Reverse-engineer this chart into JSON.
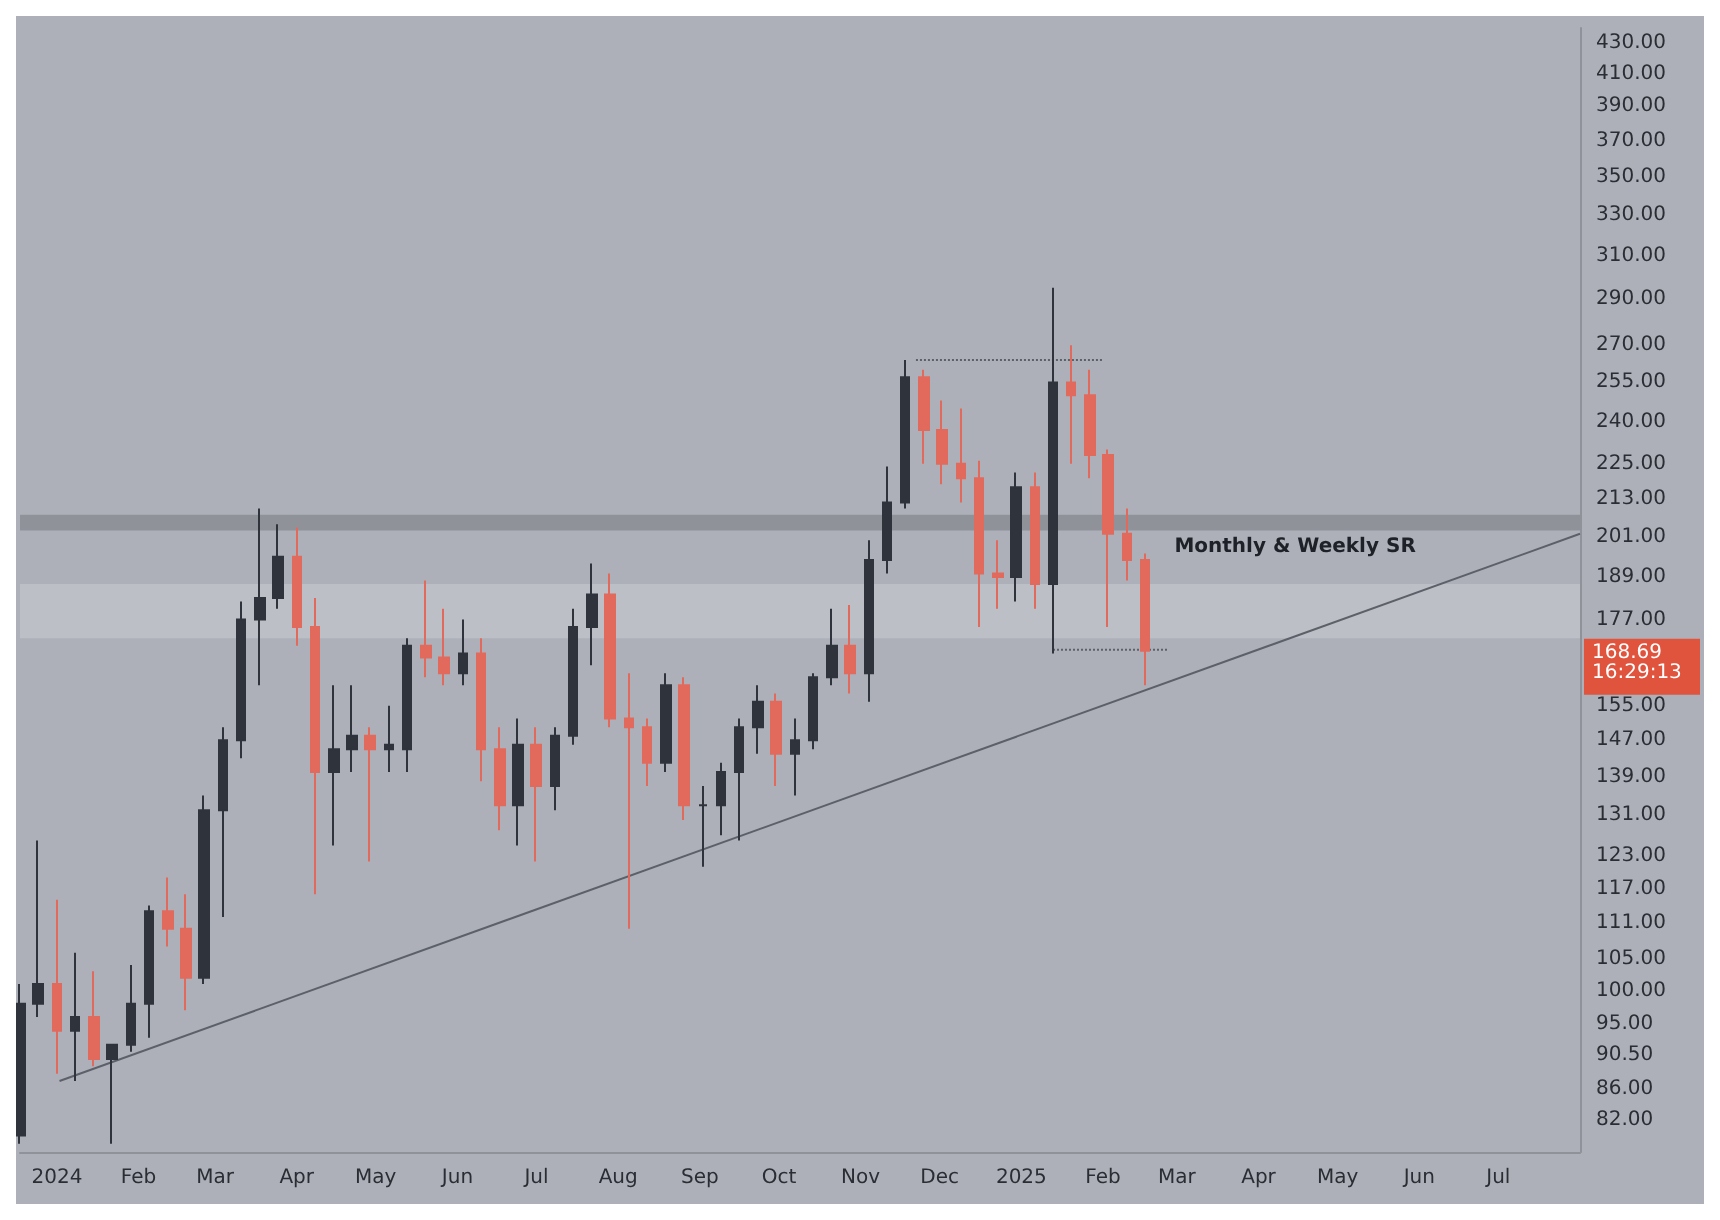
{
  "chart_data": {
    "type": "candlestick",
    "log": "y",
    "grid": false,
    "xlim": [
      "2023-12-18",
      "2025-08-01"
    ],
    "ylim": [
      78,
      440
    ],
    "xticks": [
      {
        "value": "2024-01-01",
        "label": "2024"
      },
      {
        "value": "2024-02-01",
        "label": "Feb"
      },
      {
        "value": "2024-03-01",
        "label": "Mar"
      },
      {
        "value": "2024-04-01",
        "label": "Apr"
      },
      {
        "value": "2024-05-01",
        "label": "May"
      },
      {
        "value": "2024-06-01",
        "label": "Jun"
      },
      {
        "value": "2024-07-01",
        "label": "Jul"
      },
      {
        "value": "2024-08-01",
        "label": "Aug"
      },
      {
        "value": "2024-09-01",
        "label": "Sep"
      },
      {
        "value": "2024-10-01",
        "label": "Oct"
      },
      {
        "value": "2024-11-01",
        "label": "Nov"
      },
      {
        "value": "2024-12-01",
        "label": "Dec"
      },
      {
        "value": "2025-01-01",
        "label": "2025"
      },
      {
        "value": "2025-02-01",
        "label": "Feb"
      },
      {
        "value": "2025-03-01",
        "label": "Mar"
      },
      {
        "value": "2025-04-01",
        "label": "Apr"
      },
      {
        "value": "2025-05-01",
        "label": "May"
      },
      {
        "value": "2025-06-01",
        "label": "Jun"
      },
      {
        "value": "2025-07-01",
        "label": "Jul"
      }
    ],
    "yticks": [
      {
        "value": 82,
        "label": "82.00"
      },
      {
        "value": 86,
        "label": "86.00"
      },
      {
        "value": 90.5,
        "label": "90.50"
      },
      {
        "value": 95,
        "label": "95.00"
      },
      {
        "value": 100,
        "label": "100.00"
      },
      {
        "value": 105,
        "label": "105.00"
      },
      {
        "value": 111,
        "label": "111.00"
      },
      {
        "value": 117,
        "label": "117.00"
      },
      {
        "value": 123,
        "label": "123.00"
      },
      {
        "value": 131,
        "label": "131.00"
      },
      {
        "value": 139,
        "label": "139.00"
      },
      {
        "value": 147,
        "label": "147.00"
      },
      {
        "value": 155,
        "label": "155.00"
      },
      {
        "value": 177,
        "label": "177.00"
      },
      {
        "value": 189,
        "label": "189.00"
      },
      {
        "value": 201,
        "label": "201.00"
      },
      {
        "value": 213,
        "label": "213.00"
      },
      {
        "value": 225,
        "label": "225.00"
      },
      {
        "value": 240,
        "label": "240.00"
      },
      {
        "value": 255,
        "label": "255.00"
      },
      {
        "value": 270,
        "label": "270.00"
      },
      {
        "value": 290,
        "label": "290.00"
      },
      {
        "value": 310,
        "label": "310.00"
      },
      {
        "value": 330,
        "label": "330.00"
      },
      {
        "value": 350,
        "label": "350.00"
      },
      {
        "value": 370,
        "label": "370.00"
      },
      {
        "value": 390,
        "label": "390.00"
      },
      {
        "value": 410,
        "label": "410.00"
      },
      {
        "value": 430,
        "label": "430.00"
      }
    ],
    "bands": [
      {
        "axis": "y",
        "from": 203,
        "to": 208,
        "label": "Monthly & Weekly SR",
        "color": "#8f9299"
      },
      {
        "axis": "y",
        "from": 172,
        "to": 187,
        "color": "#bcbfc6"
      }
    ],
    "annotations": [
      "168.69",
      "16:29:13"
    ],
    "series": [
      {
        "colors": [
          "#2f333b",
          "#2f333b",
          "#e26a5c",
          "#2f333b",
          "#e26a5c",
          "#2f333b",
          "#2f333b",
          "#2f333b",
          "#e26a5c",
          "#e26a5c",
          "#2f333b",
          "#2f333b",
          "#2f333b",
          "#2f333b",
          "#2f333b",
          "#e26a5c",
          "#e26a5c",
          "#2f333b",
          "#2f333b",
          "#e26a5c",
          "#2f333b",
          "#2f333b",
          "#e26a5c",
          "#e26a5c",
          "#2f333b",
          "#e26a5c",
          "#e26a5c",
          "#2f333b",
          "#e26a5c",
          "#2f333b",
          "#2f333b",
          "#2f333b",
          "#e26a5c",
          "#e26a5c",
          "#e26a5c",
          "#2f333b",
          "#e26a5c",
          "#2f333b",
          "#2f333b",
          "#2f333b",
          "#2f333b",
          "#e26a5c",
          "#2f333b",
          "#2f333b",
          "#2f333b",
          "#e26a5c",
          "#2f333b",
          "#2f333b",
          "#2f333b",
          "#e26a5c",
          "#e26a5c",
          "#e26a5c",
          "#e26a5c",
          "#e26a5c",
          "#2f333b",
          "#e26a5c",
          "#2f333b",
          "#e26a5c",
          "#e26a5c",
          "#e26a5c",
          "#e26a5c",
          "#e26a5c"
        ],
        "x": [
          "2023-12-18",
          "2023-12-25",
          "2024-01-01",
          "2024-01-08",
          "2024-01-15",
          "2024-01-22",
          "2024-01-29",
          "2024-02-05",
          "2024-02-12",
          "2024-02-19",
          "2024-02-26",
          "2024-03-04",
          "2024-03-11",
          "2024-03-18",
          "2024-03-25",
          "2024-04-01",
          "2024-04-08",
          "2024-04-15",
          "2024-04-22",
          "2024-04-29",
          "2024-05-06",
          "2024-05-13",
          "2024-05-20",
          "2024-05-27",
          "2024-06-03",
          "2024-06-10",
          "2024-06-17",
          "2024-06-24",
          "2024-07-01",
          "2024-07-08",
          "2024-07-15",
          "2024-07-22",
          "2024-07-29",
          "2024-08-05",
          "2024-08-12",
          "2024-08-19",
          "2024-08-26",
          "2024-09-02",
          "2024-09-09",
          "2024-09-16",
          "2024-09-23",
          "2024-09-30",
          "2024-10-07",
          "2024-10-14",
          "2024-10-21",
          "2024-10-28",
          "2024-11-04",
          "2024-11-11",
          "2024-11-18",
          "2024-11-25",
          "2024-12-02",
          "2024-12-09",
          "2024-12-16",
          "2024-12-23",
          "2024-12-30",
          "2025-01-06",
          "2025-01-13",
          "2025-01-20",
          "2025-01-27",
          "2025-02-03",
          "2025-02-10",
          "2025-02-17"
        ],
        "ohlc": [
          [
            80,
            101,
            79,
            98
          ],
          [
            98,
            126,
            96,
            101
          ],
          [
            101,
            115,
            88,
            94
          ],
          [
            94,
            106,
            87,
            96
          ],
          [
            96,
            103,
            89,
            90
          ],
          [
            90,
            92,
            79,
            92
          ],
          [
            92,
            104,
            91,
            98
          ],
          [
            98,
            114,
            93,
            113
          ],
          [
            113,
            119,
            107,
            110
          ],
          [
            110,
            116,
            97,
            102
          ],
          [
            102,
            135,
            101,
            132
          ],
          [
            132,
            150,
            112,
            147
          ],
          [
            147,
            182,
            143,
            177
          ],
          [
            177,
            210,
            160,
            183
          ],
          [
            183,
            205,
            180,
            195
          ],
          [
            195,
            204,
            170,
            175
          ],
          [
            175,
            183,
            116,
            140
          ],
          [
            140,
            160,
            125,
            145
          ],
          [
            145,
            160,
            140,
            148
          ],
          [
            148,
            150,
            122,
            145
          ],
          [
            145,
            155,
            140,
            146
          ],
          [
            145,
            172,
            140,
            170
          ],
          [
            170,
            188,
            162,
            167
          ],
          [
            167,
            180,
            160,
            163
          ],
          [
            163,
            177,
            160,
            168
          ],
          [
            168,
            172,
            138,
            145
          ],
          [
            145,
            150,
            128,
            133
          ],
          [
            133,
            152,
            125,
            146
          ],
          [
            146,
            150,
            122,
            137
          ],
          [
            137,
            150,
            132,
            148
          ],
          [
            148,
            180,
            146,
            175
          ],
          [
            175,
            193,
            165,
            184
          ],
          [
            184,
            190,
            150,
            152
          ],
          [
            152,
            163,
            110,
            150
          ],
          [
            150,
            152,
            137,
            142
          ],
          [
            142,
            163,
            140,
            160
          ],
          [
            160,
            162,
            130,
            133
          ],
          [
            133,
            137,
            121,
            133
          ],
          [
            133,
            142,
            127,
            140
          ],
          [
            140,
            152,
            126,
            150
          ],
          [
            150,
            160,
            144,
            156
          ],
          [
            156,
            158,
            137,
            144
          ],
          [
            144,
            152,
            135,
            147
          ],
          [
            147,
            163,
            145,
            162
          ],
          [
            162,
            180,
            160,
            170
          ],
          [
            170,
            181,
            158,
            163
          ],
          [
            163,
            200,
            156,
            194
          ],
          [
            194,
            224,
            190,
            212
          ],
          [
            212,
            264,
            210,
            257
          ],
          [
            257,
            260,
            225,
            237
          ],
          [
            237,
            248,
            218,
            225
          ],
          [
            225,
            245,
            212,
            220
          ],
          [
            220,
            226,
            175,
            190
          ],
          [
            190,
            200,
            180,
            189
          ],
          [
            189,
            222,
            182,
            217
          ],
          [
            217,
            222,
            180,
            187
          ],
          [
            187,
            295,
            168,
            255
          ],
          [
            255,
            270,
            225,
            250
          ],
          [
            250,
            260,
            220,
            228
          ],
          [
            228,
            230,
            175,
            202
          ],
          [
            202,
            210,
            188,
            194
          ],
          [
            194,
            196,
            160,
            168.69
          ]
        ]
      },
      {
        "type": "line",
        "color": "#5c6068",
        "x": [
          "2024-01-02",
          "2025-08-01"
        ],
        "values": [
          87,
          202
        ],
        "line_style": "solid"
      },
      {
        "type": "line",
        "color": "#5c6068",
        "x": [
          "2024-11-22",
          "2025-02-01"
        ],
        "values": [
          264,
          264
        ],
        "line_style": "dotted"
      },
      {
        "type": "line",
        "color": "#5c6068",
        "x": [
          "2025-01-13",
          "2025-02-26"
        ],
        "values": [
          169,
          169
        ],
        "line_style": "dotted"
      }
    ]
  }
}
